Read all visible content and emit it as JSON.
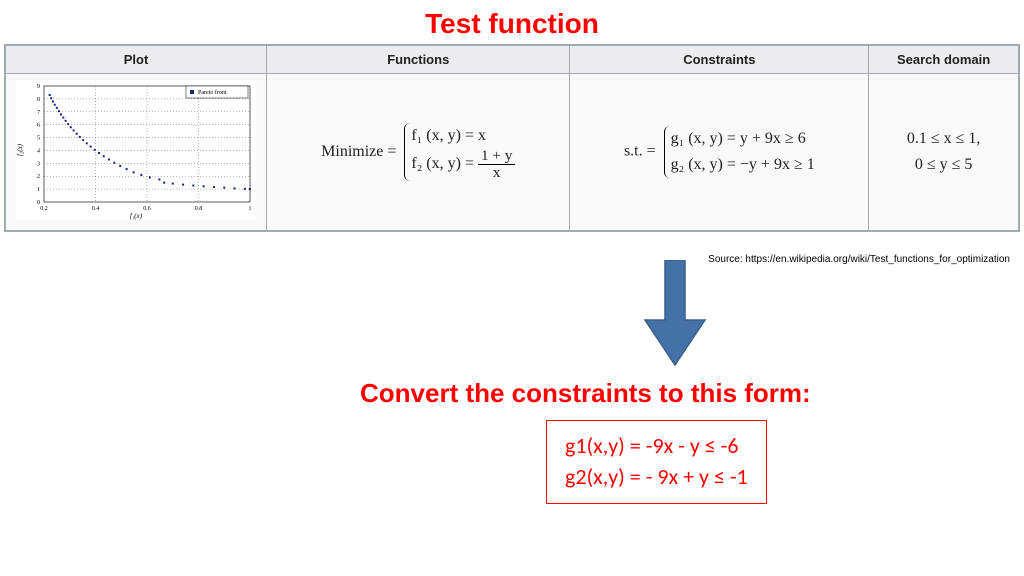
{
  "title": "Test function",
  "table": {
    "headers": [
      "Plot",
      "Functions",
      "Constraints",
      "Search domain"
    ],
    "functions": {
      "prefix": "Minimize =",
      "f1": "f₁ (x, y) = x",
      "f2_lhs": "f₂ (x, y) = ",
      "f2_num": "1 + y",
      "f2_den": "x"
    },
    "constraints": {
      "prefix": "s.t. =",
      "g1": "g₁ (x, y) = y + 9x ≥ 6",
      "g2": "g₂ (x, y) = −y + 9x ≥ 1"
    },
    "domain": {
      "line1": "0.1 ≤ x ≤ 1,",
      "line2": "0 ≤ y ≤ 5"
    }
  },
  "plot": {
    "legend": "Pareto front",
    "x_label": "f₁(x)",
    "y_label": "f₂(x)",
    "xlim": [
      0.2,
      1.0
    ],
    "ylim": [
      0,
      9
    ],
    "xticks": [
      0.2,
      0.4,
      0.6,
      0.8,
      1.0
    ],
    "yticks": [
      0,
      1,
      2,
      3,
      4,
      5,
      6,
      7,
      8,
      9
    ],
    "point_color": "#1a237e",
    "grid_color": "#000000",
    "background": "#ffffff",
    "marker": "square",
    "marker_size": 2,
    "points": [
      [
        0.222,
        8.3
      ],
      [
        0.228,
        8.05
      ],
      [
        0.235,
        7.8
      ],
      [
        0.242,
        7.55
      ],
      [
        0.25,
        7.3
      ],
      [
        0.258,
        7.05
      ],
      [
        0.266,
        6.8
      ],
      [
        0.275,
        6.55
      ],
      [
        0.284,
        6.3
      ],
      [
        0.294,
        6.05
      ],
      [
        0.304,
        5.8
      ],
      [
        0.315,
        5.55
      ],
      [
        0.327,
        5.3
      ],
      [
        0.339,
        5.05
      ],
      [
        0.352,
        4.8
      ],
      [
        0.366,
        4.55
      ],
      [
        0.381,
        4.3
      ],
      [
        0.397,
        4.05
      ],
      [
        0.414,
        3.8
      ],
      [
        0.432,
        3.55
      ],
      [
        0.452,
        3.3
      ],
      [
        0.473,
        3.05
      ],
      [
        0.496,
        2.8
      ],
      [
        0.521,
        2.55
      ],
      [
        0.548,
        2.3
      ],
      [
        0.578,
        2.1
      ],
      [
        0.611,
        1.9
      ],
      [
        0.648,
        1.75
      ],
      [
        0.667,
        1.5
      ],
      [
        0.7,
        1.43
      ],
      [
        0.74,
        1.35
      ],
      [
        0.78,
        1.28
      ],
      [
        0.82,
        1.22
      ],
      [
        0.86,
        1.16
      ],
      [
        0.9,
        1.11
      ],
      [
        0.94,
        1.06
      ],
      [
        0.98,
        1.02
      ],
      [
        1.0,
        1.0
      ]
    ]
  },
  "source": "Source: https://en.wikipedia.org/wiki/Test_functions_for_optimization",
  "arrow": {
    "color": "#4472a8",
    "stroke": "#3a5f8a"
  },
  "convert_title": "Convert the constraints to this form:",
  "converted": {
    "g1": "g1(x,y) = -9x - y ≤ -6",
    "g2": "g2(x,y) =  - 9x + y ≤ -1",
    "border_color": "#ff0000",
    "text_color": "#ff0000"
  }
}
